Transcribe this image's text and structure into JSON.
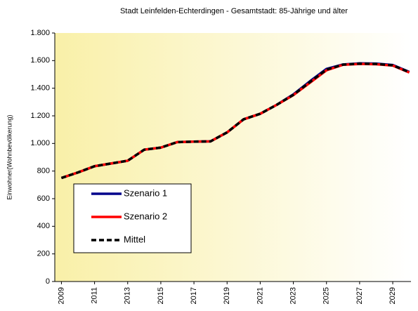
{
  "chart_data": {
    "type": "line",
    "title": "Stadt Leinfelden-Echterdingen -  Gesamtstadt:  85-Jährige und älter",
    "y_label": "Einwohner(Wohnbevölkerung)",
    "x": [
      2009,
      2010,
      2011,
      2012,
      2013,
      2014,
      2015,
      2016,
      2017,
      2018,
      2019,
      2020,
      2021,
      2022,
      2023,
      2024,
      2025,
      2026,
      2027,
      2028,
      2029,
      2030
    ],
    "series": [
      {
        "name": "Szenario 1",
        "color": "#00008b",
        "style": "solid",
        "values": [
          750,
          790,
          835,
          855,
          875,
          955,
          970,
          1010,
          1013,
          1015,
          1080,
          1175,
          1215,
          1280,
          1355,
          1450,
          1540,
          1572,
          1580,
          1578,
          1568,
          1518
        ]
      },
      {
        "name": "Szenario 2",
        "color": "#ff0000",
        "style": "solid",
        "values": [
          750,
          790,
          835,
          855,
          875,
          955,
          970,
          1010,
          1013,
          1015,
          1080,
          1175,
          1215,
          1280,
          1350,
          1440,
          1530,
          1570,
          1576,
          1574,
          1564,
          1514
        ]
      },
      {
        "name": "Mittel",
        "color": "#000000",
        "style": "dashed",
        "values": [
          750,
          790,
          835,
          855,
          875,
          955,
          970,
          1010,
          1013,
          1015,
          1080,
          1175,
          1215,
          1280,
          1352,
          1445,
          1535,
          1571,
          1578,
          1576,
          1566,
          1516
        ]
      }
    ],
    "xlim": [
      2008.6,
      2030.1
    ],
    "xticks": [
      2009,
      2011,
      2013,
      2015,
      2017,
      2019,
      2021,
      2023,
      2025,
      2027,
      2029
    ],
    "ylim": [
      0,
      1800
    ],
    "yticks": [
      0,
      200,
      400,
      600,
      800,
      {
        "value": 1000,
        "label": "1.000"
      },
      {
        "value": 1200,
        "label": "1.200"
      },
      {
        "value": 1400,
        "label": "1.400"
      },
      {
        "value": 1600,
        "label": "1.600"
      },
      {
        "value": 1800,
        "label": "1.800"
      }
    ],
    "legend": "lower-left"
  }
}
